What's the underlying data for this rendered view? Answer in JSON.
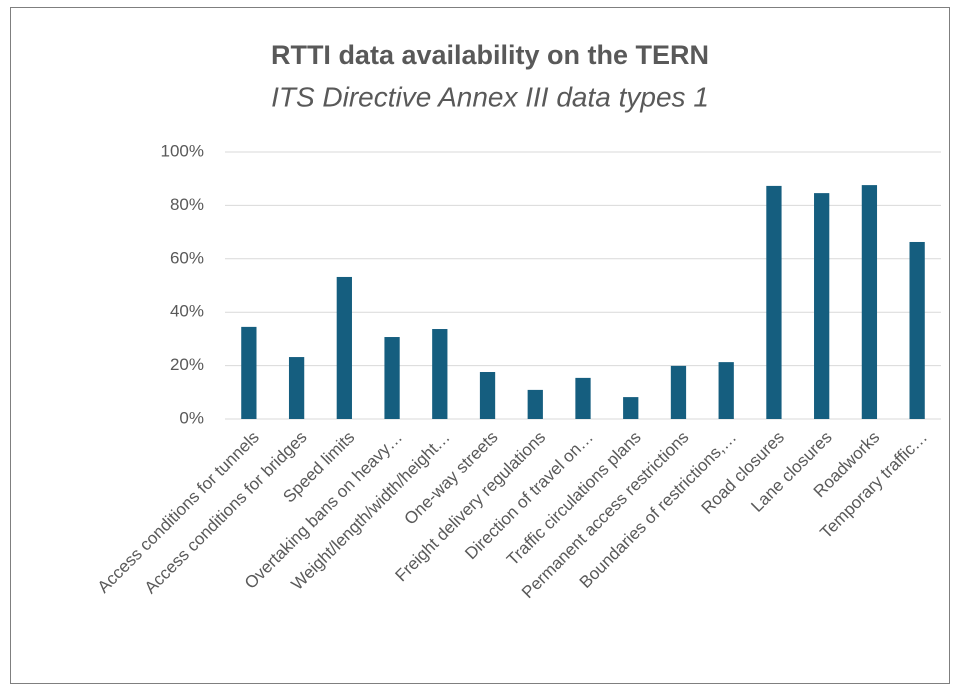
{
  "chart_data": {
    "type": "bar",
    "title": "RTTI data availability on the TERN",
    "subtitle": "ITS Directive Annex III data types 1",
    "categories": [
      "Access conditions for tunnels",
      "Access conditions for bridges",
      "Speed limits",
      "Overtaking bans on heavy…",
      "Weight/length/width/height…",
      "One-way streets",
      "Freight delivery regulations",
      "Direction of travel on…",
      "Traffic circulations plans",
      "Permanent access restrictions",
      "Boundaries of restrictions,…",
      "Road closures",
      "Lane closures",
      "Roadworks",
      "Temporary traffic…"
    ],
    "values": [
      34.5,
      23.2,
      53.2,
      30.7,
      33.7,
      17.6,
      10.9,
      15.4,
      8.2,
      19.9,
      21.3,
      87.3,
      84.6,
      87.6,
      66.3
    ],
    "color": "#155e7f",
    "ylim": [
      0,
      100
    ],
    "yticks": [
      {
        "value": 0,
        "label": "0%"
      },
      {
        "value": 20,
        "label": "20%"
      },
      {
        "value": 40,
        "label": "40%"
      },
      {
        "value": 60,
        "label": "60%"
      },
      {
        "value": 80,
        "label": "80%"
      },
      {
        "value": 100,
        "label": "100%"
      }
    ],
    "grid": true
  }
}
